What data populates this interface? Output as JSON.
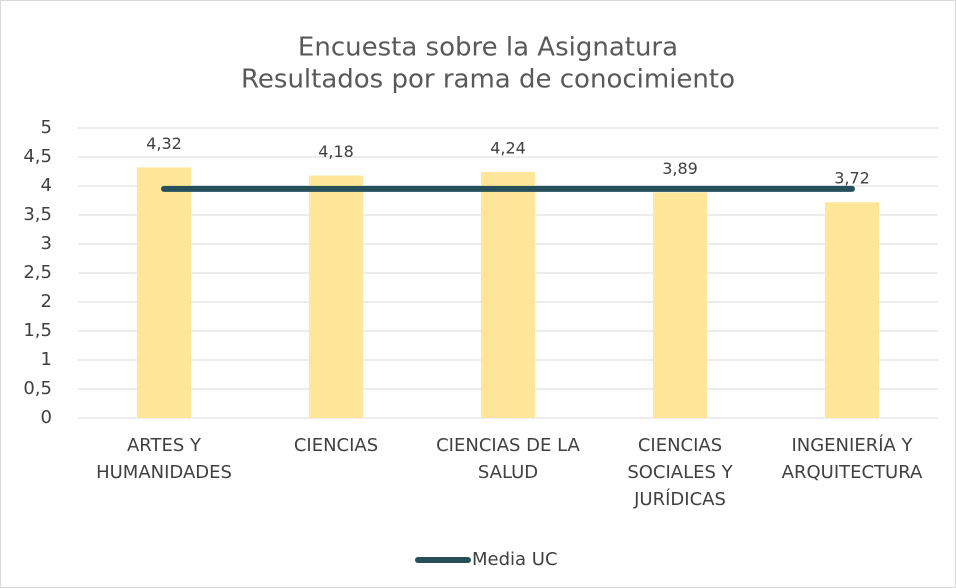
{
  "chart_data": {
    "type": "bar",
    "title": "Encuesta sobre la Asignatura",
    "subtitle": "Resultados por rama de conocimiento",
    "categories": [
      "ARTES Y HUMANIDADES",
      "CIENCIAS",
      "CIENCIAS DE LA SALUD",
      "CIENCIAS SOCIALES Y JURÍDICAS",
      "INGENIERÍA Y ARQUITECTURA"
    ],
    "series": [
      {
        "type": "bar",
        "color": "#ffe699",
        "values": [
          4.32,
          4.18,
          4.24,
          3.89,
          3.72
        ],
        "value_labels": [
          "4,32",
          "4,18",
          "4,24",
          "3,89",
          "3,72"
        ]
      },
      {
        "type": "line",
        "name": "Media UC",
        "color": "#264f5c",
        "values": [
          3.95,
          3.95,
          3.95,
          3.95,
          3.95
        ]
      }
    ],
    "ylim": [
      0,
      5
    ],
    "yticks": [
      0,
      {
        "value": 0.5,
        "label": "0,5"
      },
      1,
      {
        "value": 1.5,
        "label": "1,5"
      },
      2,
      {
        "value": 2.5,
        "label": "2,5"
      },
      3,
      {
        "value": 3.5,
        "label": "3,5"
      },
      4,
      {
        "value": 4.5,
        "label": "4,5"
      },
      5
    ],
    "grid": true,
    "legend": "bottom"
  }
}
